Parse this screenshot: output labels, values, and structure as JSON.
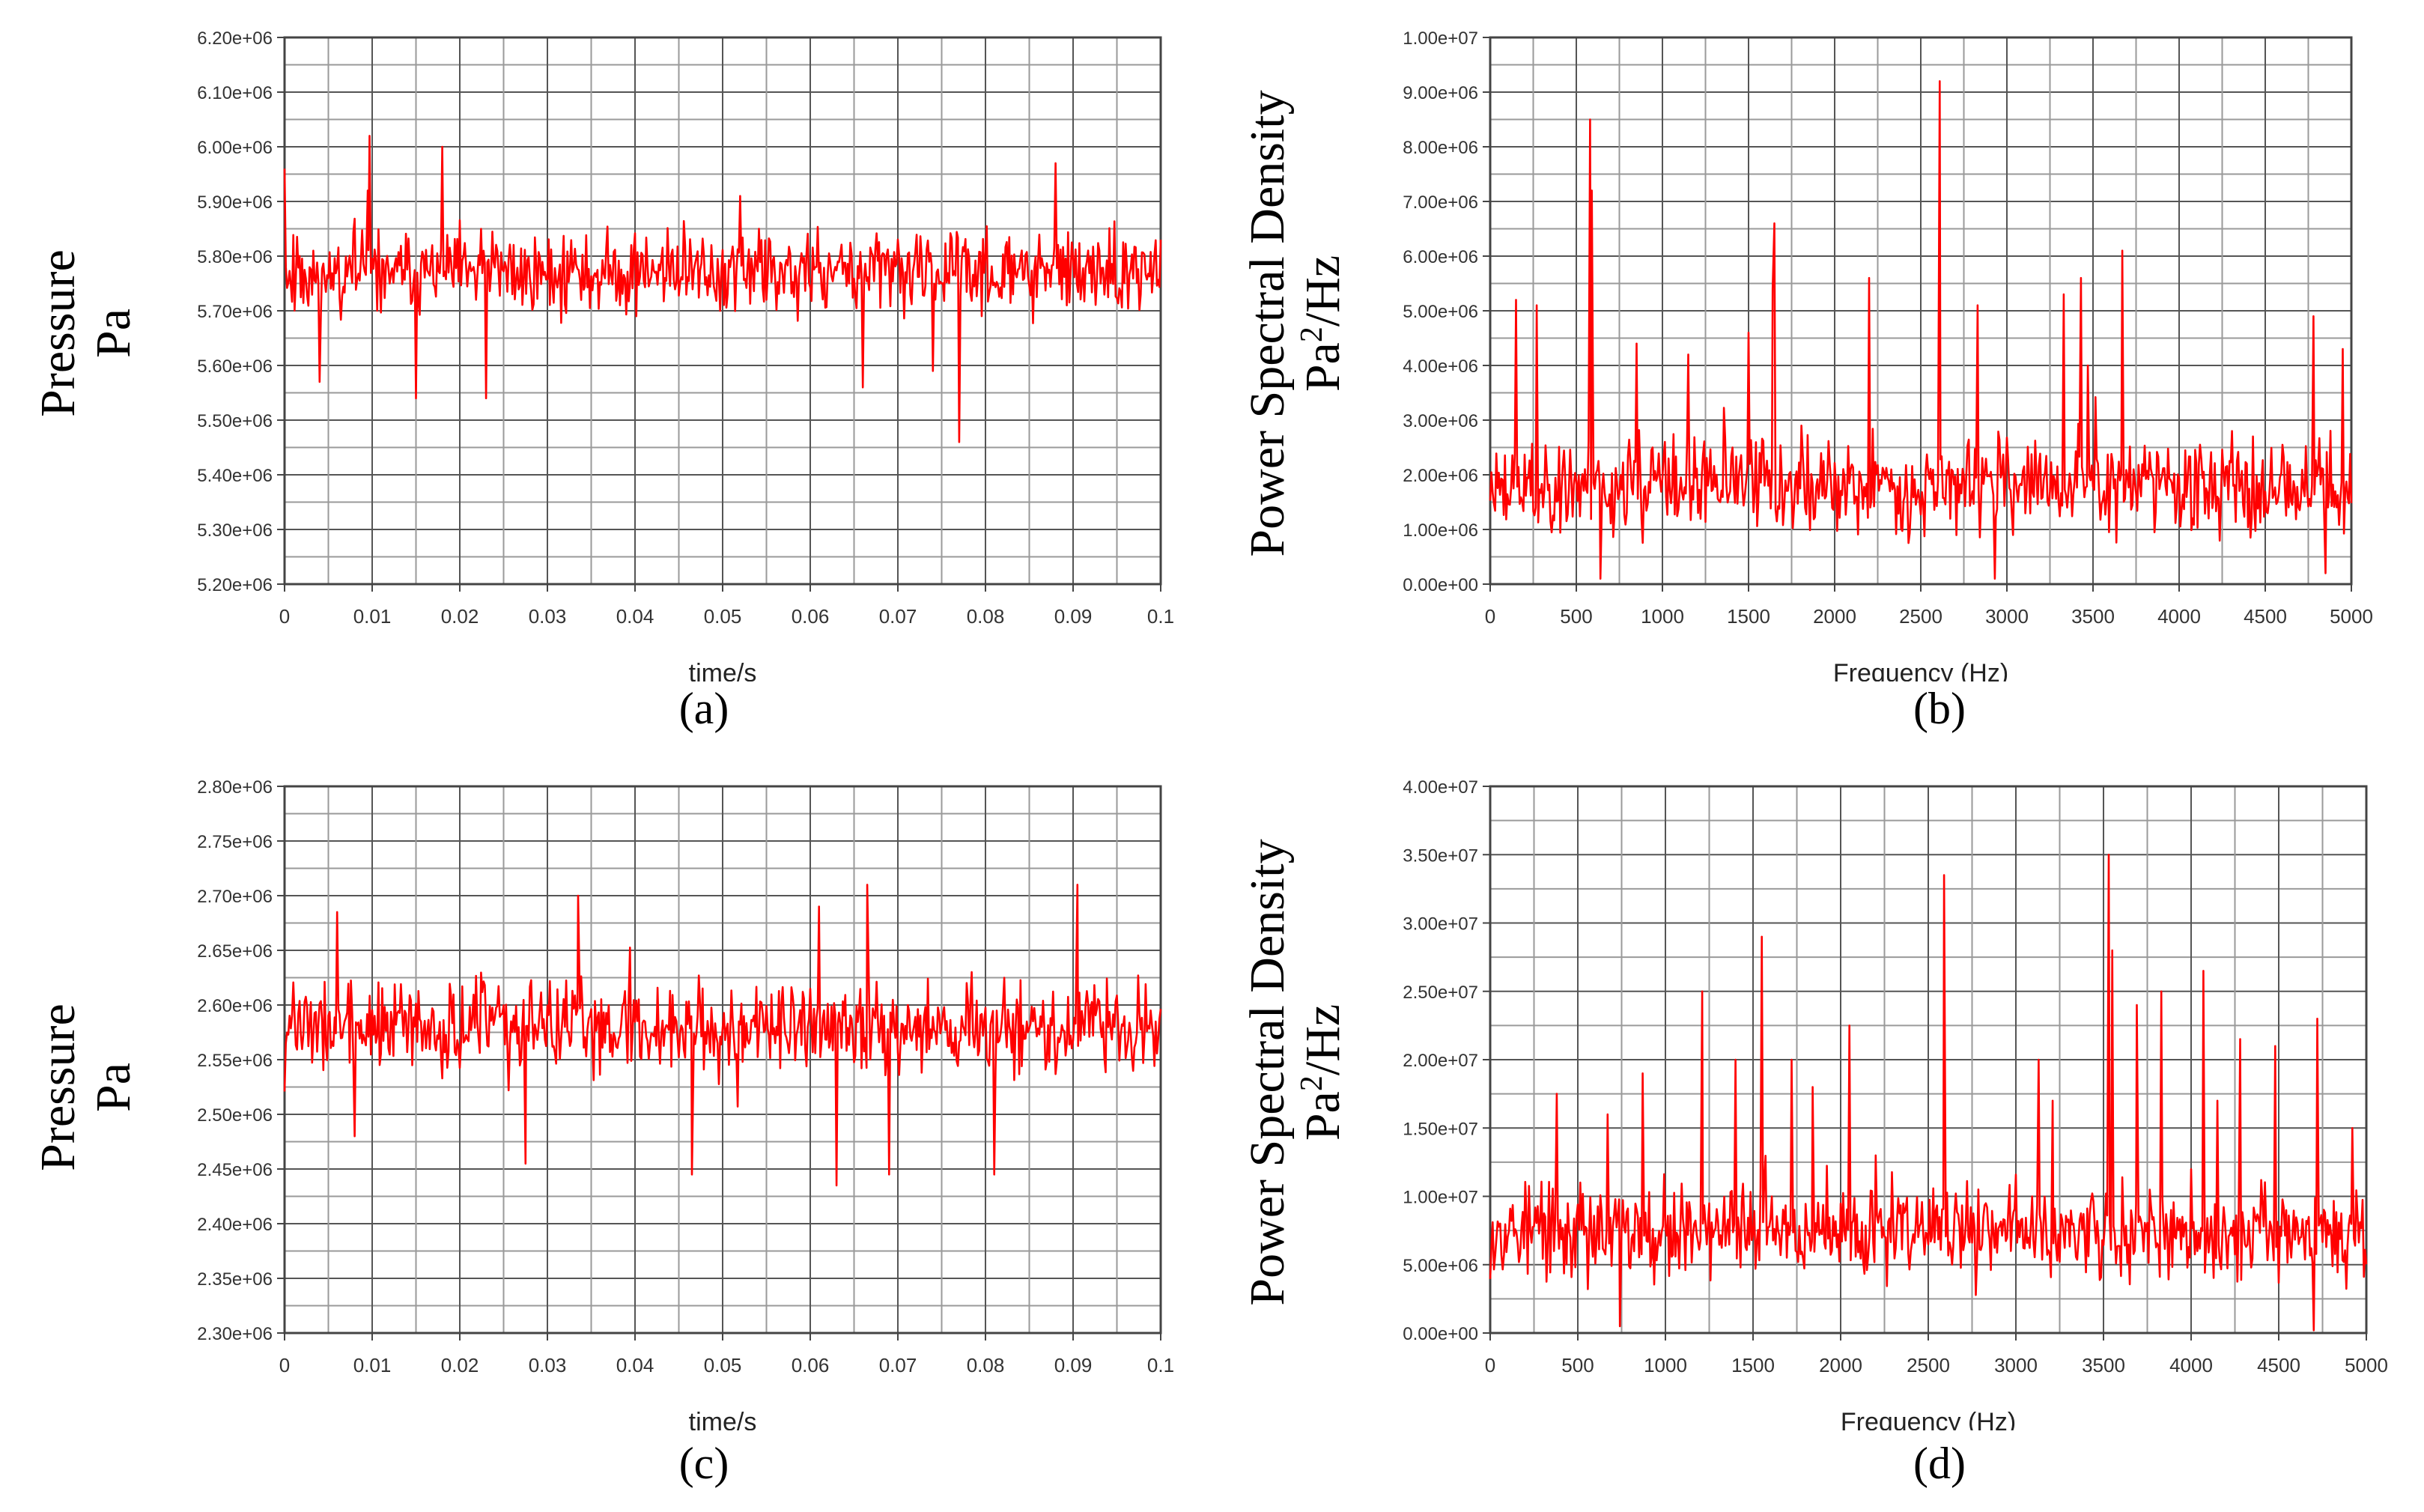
{
  "chart_data": [
    {
      "id": "a",
      "type": "line",
      "caption": "(a)",
      "ylabel_line1": "Pressure",
      "ylabel_line2": "Pa",
      "xlabel": "time/s",
      "xlim": [
        0,
        0.1
      ],
      "ylim": [
        5200000,
        6200000
      ],
      "xticks": [
        "0",
        "0.01",
        "0.02",
        "0.03",
        "0.04",
        "0.05",
        "0.06",
        "0.07",
        "0.08",
        "0.09",
        "0.1"
      ],
      "yticks": [
        "5.20e+06",
        "5.30e+06",
        "5.40e+06",
        "5.50e+06",
        "5.60e+06",
        "5.70e+06",
        "5.80e+06",
        "5.90e+06",
        "6.00e+06",
        "6.10e+06",
        "6.20e+06"
      ],
      "line_color": "#ff0000",
      "series": {
        "name": "Pressure",
        "mean": 5770000,
        "spread": 55000,
        "peaks": [
          [
            0.0,
            5960000
          ],
          [
            0.0097,
            6020000
          ],
          [
            0.018,
            6000000
          ],
          [
            0.0095,
            5920000
          ],
          [
            0.052,
            5910000
          ],
          [
            0.088,
            5970000
          ],
          [
            0.077,
            5460000
          ],
          [
            0.015,
            5540000
          ],
          [
            0.023,
            5540000
          ],
          [
            0.066,
            5560000
          ],
          [
            0.074,
            5590000
          ],
          [
            0.004,
            5570000
          ],
          [
            0.1,
            5830000
          ]
        ]
      }
    },
    {
      "id": "b",
      "type": "line",
      "caption": "(b)",
      "ylabel_line1": "Power Spectral Density",
      "ylabel_line2_prefix": "Pa",
      "ylabel_line2_sup": "2",
      "ylabel_line2_suffix": "/Hz",
      "xlabel": "Frequency (Hz)",
      "xlim": [
        0,
        5000
      ],
      "ylim": [
        0,
        10000000
      ],
      "xticks": [
        "0",
        "500",
        "1000",
        "1500",
        "2000",
        "2500",
        "3000",
        "3500",
        "4000",
        "4500",
        "5000"
      ],
      "yticks": [
        "0.00e+00",
        "1.00e+06",
        "2.00e+06",
        "3.00e+06",
        "4.00e+06",
        "5.00e+06",
        "6.00e+06",
        "7.00e+06",
        "8.00e+06",
        "9.00e+06",
        "1.00e+07"
      ],
      "line_color": "#ff0000",
      "series": {
        "name": "PSD",
        "mean": 1800000,
        "spread": 650000,
        "peaks": [
          [
            150,
            5200000
          ],
          [
            270,
            5100000
          ],
          [
            580,
            8500000
          ],
          [
            590,
            7200000
          ],
          [
            850,
            4400000
          ],
          [
            1150,
            4200000
          ],
          [
            1500,
            4600000
          ],
          [
            1650,
            6600000
          ],
          [
            1640,
            5400000
          ],
          [
            2200,
            5600000
          ],
          [
            2610,
            9200000
          ],
          [
            2830,
            5100000
          ],
          [
            3330,
            5300000
          ],
          [
            3430,
            5600000
          ],
          [
            3470,
            4000000
          ],
          [
            3670,
            6100000
          ],
          [
            4780,
            4900000
          ],
          [
            4950,
            4300000
          ],
          [
            640,
            100000
          ],
          [
            2930,
            100000
          ],
          [
            4850,
            200000
          ]
        ]
      }
    },
    {
      "id": "c",
      "type": "line",
      "caption": "(c)",
      "ylabel_line1": "Pressure",
      "ylabel_line2": "Pa",
      "xlabel": "time/s",
      "xlim": [
        0,
        0.1
      ],
      "ylim": [
        2300000,
        2800000
      ],
      "xticks": [
        "0",
        "0.01",
        "0.02",
        "0.03",
        "0.04",
        "0.05",
        "0.06",
        "0.07",
        "0.08",
        "0.09",
        "0.1"
      ],
      "yticks": [
        "2.30e+06",
        "2.35e+06",
        "2.40e+06",
        "2.45e+06",
        "2.50e+06",
        "2.55e+06",
        "2.60e+06",
        "2.65e+06",
        "2.70e+06",
        "2.75e+06",
        "2.80e+06"
      ],
      "line_color": "#ff0000",
      "series": {
        "name": "Pressure",
        "mean": 2580000,
        "spread": 30000,
        "peaks": [
          [
            0.0335,
            2700000
          ],
          [
            0.0665,
            2710000
          ],
          [
            0.0905,
            2710000
          ],
          [
            0.006,
            2685000
          ],
          [
            0.061,
            2690000
          ],
          [
            0.0465,
            2445000
          ],
          [
            0.063,
            2435000
          ],
          [
            0.081,
            2445000
          ],
          [
            0.0275,
            2455000
          ],
          [
            0.069,
            2445000
          ],
          [
            0.008,
            2480000
          ]
        ]
      }
    },
    {
      "id": "d",
      "type": "line",
      "caption": "(d)",
      "ylabel_line1": "Power Spectral Density",
      "ylabel_line2_prefix": "Pa",
      "ylabel_line2_sup": "2",
      "ylabel_line2_suffix": "/Hz",
      "xlabel": "Frequency (Hz)",
      "xlim": [
        0,
        5000
      ],
      "ylim": [
        0,
        40000000
      ],
      "xticks": [
        "0",
        "500",
        "1000",
        "1500",
        "2000",
        "2500",
        "3000",
        "3500",
        "4000",
        "4500",
        "5000"
      ],
      "yticks": [
        "0.00e+00",
        "5.00e+06",
        "1.00e+07",
        "1.50e+07",
        "2.00e+07",
        "2.50e+07",
        "3.00e+07",
        "3.50e+07",
        "4.00e+07"
      ],
      "line_color": "#ff0000",
      "series": {
        "name": "PSD",
        "mean": 7500000,
        "spread": 2600000,
        "peaks": [
          [
            380,
            17500000
          ],
          [
            670,
            16000000
          ],
          [
            870,
            19000000
          ],
          [
            1210,
            25000000
          ],
          [
            1400,
            20000000
          ],
          [
            1550,
            29000000
          ],
          [
            1720,
            20000000
          ],
          [
            1840,
            18000000
          ],
          [
            2050,
            22500000
          ],
          [
            2590,
            33500000
          ],
          [
            3130,
            20000000
          ],
          [
            3210,
            17000000
          ],
          [
            3530,
            35000000
          ],
          [
            3550,
            28000000
          ],
          [
            3690,
            24000000
          ],
          [
            3830,
            25000000
          ],
          [
            4070,
            26500000
          ],
          [
            4150,
            17000000
          ],
          [
            4280,
            21500000
          ],
          [
            4480,
            21000000
          ],
          [
            4720,
            23000000
          ],
          [
            4920,
            15000000
          ],
          [
            740,
            500000
          ],
          [
            4700,
            200000
          ]
        ]
      }
    }
  ]
}
